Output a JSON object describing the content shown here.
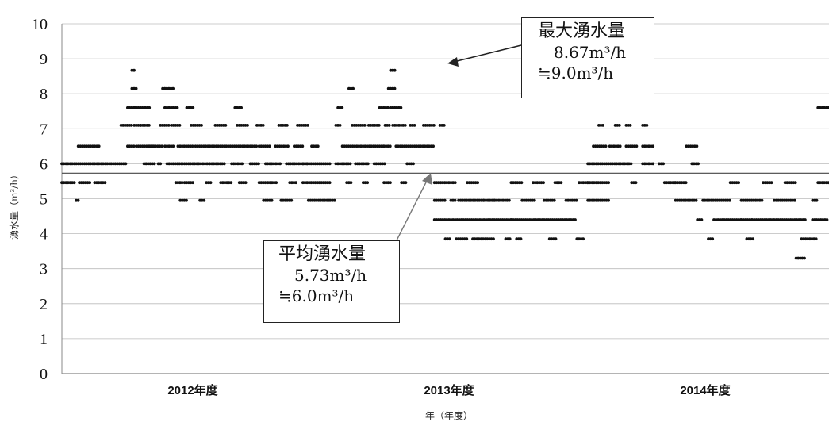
{
  "chart_data": {
    "type": "scatter",
    "ylabel": "湧水量（m³/h）",
    "xlabel": "年（年度）",
    "ylim": [
      0,
      10
    ],
    "yticks": [
      0,
      1,
      2,
      3,
      4,
      5,
      6,
      7,
      8,
      9,
      10
    ],
    "xticks": [
      "2012年度",
      "2013年度",
      "2014年度"
    ],
    "grid": true,
    "average_line": 5.73,
    "annotations": {
      "max": {
        "title": "最大湧水量",
        "value": "8.67m³/h",
        "approx": "≒9.0m³/h"
      },
      "avg": {
        "title": "平均湧水量",
        "value": "5.73m³/h",
        "approx": "≒6.0m³/h"
      }
    },
    "series": [
      {
        "segments": [
          [
            0.0,
            0.012,
            5.46
          ],
          [
            0.013,
            0.015,
            4.95
          ],
          [
            0.016,
            0.026,
            5.46
          ],
          [
            0.0,
            0.045,
            6.0
          ],
          [
            0.015,
            0.035,
            6.5
          ],
          [
            0.03,
            0.04,
            5.46
          ],
          [
            0.045,
            0.06,
            6.0
          ],
          [
            0.06,
            0.066,
            6.5
          ],
          [
            0.054,
            0.064,
            7.1
          ],
          [
            0.06,
            0.068,
            7.6
          ],
          [
            0.064,
            0.066,
            8.67
          ],
          [
            0.064,
            0.068,
            8.15
          ],
          [
            0.066,
            0.075,
            7.6
          ],
          [
            0.066,
            0.072,
            7.1
          ],
          [
            0.068,
            0.085,
            6.5
          ],
          [
            0.072,
            0.08,
            7.1
          ],
          [
            0.075,
            0.085,
            6.0
          ],
          [
            0.076,
            0.08,
            7.6
          ],
          [
            0.08,
            0.092,
            6.5
          ],
          [
            0.088,
            0.09,
            6.0
          ],
          [
            0.09,
            0.098,
            7.1
          ],
          [
            0.092,
            0.102,
            8.15
          ],
          [
            0.094,
            0.106,
            7.6
          ],
          [
            0.094,
            0.102,
            6.5
          ],
          [
            0.096,
            0.11,
            6.0
          ],
          [
            0.1,
            0.108,
            7.1
          ],
          [
            0.104,
            0.11,
            5.46
          ],
          [
            0.108,
            0.114,
            4.95
          ],
          [
            0.106,
            0.12,
            6.5
          ],
          [
            0.112,
            0.12,
            5.46
          ],
          [
            0.11,
            0.125,
            6.0
          ],
          [
            0.114,
            0.12,
            7.6
          ],
          [
            0.118,
            0.128,
            7.1
          ],
          [
            0.122,
            0.15,
            6.5
          ],
          [
            0.125,
            0.135,
            6.0
          ],
          [
            0.126,
            0.13,
            4.95
          ],
          [
            0.132,
            0.136,
            5.46
          ],
          [
            0.135,
            0.15,
            6.0
          ],
          [
            0.14,
            0.15,
            7.1
          ],
          [
            0.145,
            0.155,
            5.46
          ],
          [
            0.15,
            0.17,
            6.5
          ],
          [
            0.155,
            0.165,
            6.0
          ],
          [
            0.158,
            0.165,
            7.6
          ],
          [
            0.16,
            0.17,
            7.1
          ],
          [
            0.162,
            0.168,
            5.46
          ],
          [
            0.17,
            0.178,
            6.5
          ],
          [
            0.172,
            0.18,
            6.0
          ],
          [
            0.178,
            0.184,
            7.1
          ],
          [
            0.18,
            0.186,
            5.46
          ],
          [
            0.18,
            0.19,
            6.5
          ],
          [
            0.184,
            0.192,
            4.95
          ],
          [
            0.186,
            0.2,
            6.0
          ],
          [
            0.188,
            0.196,
            5.46
          ],
          [
            0.195,
            0.208,
            6.5
          ],
          [
            0.198,
            0.206,
            7.1
          ],
          [
            0.2,
            0.21,
            4.95
          ],
          [
            0.205,
            0.225,
            6.0
          ],
          [
            0.208,
            0.215,
            5.46
          ],
          [
            0.212,
            0.22,
            6.5
          ],
          [
            0.215,
            0.225,
            7.1
          ],
          [
            0.22,
            0.235,
            5.46
          ],
          [
            0.225,
            0.245,
            4.95
          ],
          [
            0.22,
            0.245,
            6.0
          ],
          [
            0.228,
            0.235,
            6.5
          ],
          [
            0.235,
            0.245,
            5.46
          ],
          [
            0.245,
            0.25,
            4.95
          ],
          [
            0.25,
            0.265,
            6.0
          ],
          [
            0.25,
            0.255,
            7.1
          ],
          [
            0.252,
            0.256,
            7.6
          ],
          [
            0.256,
            0.295,
            6.5
          ],
          [
            0.26,
            0.264,
            5.46
          ],
          [
            0.262,
            0.266,
            8.15
          ],
          [
            0.265,
            0.278,
            7.1
          ],
          [
            0.268,
            0.28,
            6.0
          ],
          [
            0.275,
            0.28,
            5.46
          ],
          [
            0.28,
            0.29,
            7.1
          ],
          [
            0.285,
            0.295,
            6.0
          ],
          [
            0.29,
            0.298,
            7.6
          ],
          [
            0.292,
            0.3,
            6.5
          ],
          [
            0.294,
            0.3,
            5.46
          ],
          [
            0.295,
            0.3,
            7.1
          ],
          [
            0.298,
            0.305,
            8.15
          ],
          [
            0.3,
            0.304,
            8.67
          ],
          [
            0.3,
            0.31,
            7.6
          ],
          [
            0.302,
            0.315,
            7.1
          ],
          [
            0.305,
            0.34,
            6.5
          ],
          [
            0.31,
            0.315,
            5.46
          ],
          [
            0.315,
            0.322,
            6.0
          ],
          [
            0.318,
            0.322,
            7.1
          ],
          [
            0.33,
            0.34,
            7.1
          ],
          [
            0.34,
            0.35,
            4.95
          ],
          [
            0.34,
            0.36,
            5.46
          ],
          [
            0.34,
            0.41,
            4.4
          ],
          [
            0.345,
            0.35,
            7.1
          ],
          [
            0.35,
            0.354,
            3.85
          ],
          [
            0.355,
            0.36,
            4.95
          ],
          [
            0.36,
            0.37,
            3.85
          ],
          [
            0.362,
            0.385,
            4.95
          ],
          [
            0.37,
            0.38,
            5.46
          ],
          [
            0.375,
            0.395,
            3.85
          ],
          [
            0.385,
            0.395,
            4.95
          ],
          [
            0.395,
            0.41,
            4.95
          ],
          [
            0.405,
            0.41,
            3.85
          ],
          [
            0.41,
            0.42,
            5.46
          ],
          [
            0.41,
            0.47,
            4.4
          ],
          [
            0.415,
            0.42,
            3.85
          ],
          [
            0.42,
            0.432,
            4.95
          ],
          [
            0.43,
            0.44,
            5.46
          ],
          [
            0.44,
            0.45,
            4.95
          ],
          [
            0.445,
            0.452,
            3.85
          ],
          [
            0.45,
            0.456,
            5.46
          ],
          [
            0.46,
            0.47,
            4.95
          ],
          [
            0.47,
            0.476,
            3.85
          ],
          [
            0.472,
            0.48,
            5.46
          ],
          [
            0.48,
            0.5,
            4.95
          ],
          [
            0.48,
            0.5,
            5.46
          ],
          [
            0.48,
            0.51,
            6.0
          ],
          [
            0.485,
            0.498,
            6.5
          ],
          [
            0.49,
            0.495,
            7.1
          ],
          [
            0.5,
            0.51,
            6.5
          ],
          [
            0.505,
            0.51,
            7.1
          ],
          [
            0.51,
            0.52,
            6.0
          ],
          [
            0.515,
            0.52,
            7.1
          ],
          [
            0.515,
            0.525,
            6.5
          ],
          [
            0.52,
            0.525,
            5.46
          ],
          [
            0.53,
            0.535,
            7.1
          ],
          [
            0.53,
            0.54,
            6.0
          ],
          [
            0.53,
            0.54,
            6.5
          ],
          [
            0.545,
            0.55,
            6.0
          ],
          [
            0.55,
            0.56,
            5.46
          ],
          [
            0.56,
            0.58,
            4.95
          ],
          [
            0.56,
            0.57,
            5.46
          ],
          [
            0.57,
            0.58,
            6.5
          ],
          [
            0.575,
            0.582,
            6.0
          ],
          [
            0.58,
            0.585,
            4.4
          ],
          [
            0.585,
            0.6,
            4.95
          ],
          [
            0.59,
            0.595,
            3.85
          ],
          [
            0.595,
            0.62,
            4.4
          ],
          [
            0.6,
            0.61,
            4.95
          ],
          [
            0.61,
            0.618,
            5.46
          ],
          [
            0.62,
            0.64,
            4.95
          ],
          [
            0.62,
            0.63,
            4.4
          ],
          [
            0.625,
            0.632,
            3.85
          ],
          [
            0.63,
            0.65,
            4.4
          ],
          [
            0.64,
            0.648,
            5.46
          ],
          [
            0.65,
            0.67,
            4.95
          ],
          [
            0.65,
            0.68,
            4.4
          ],
          [
            0.66,
            0.67,
            5.46
          ],
          [
            0.67,
            0.678,
            3.3
          ],
          [
            0.675,
            0.69,
            3.85
          ],
          [
            0.685,
            0.69,
            4.95
          ],
          [
            0.69,
            0.7,
            5.46
          ],
          [
            0.685,
            0.7,
            4.4
          ],
          [
            0.69,
            0.7,
            7.6
          ]
        ]
      }
    ]
  }
}
